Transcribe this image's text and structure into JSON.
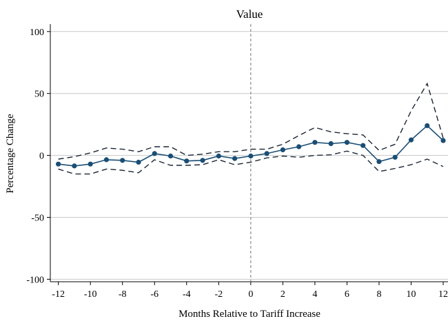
{
  "chart_data": {
    "type": "line",
    "title": "Value",
    "xlabel": "Months Relative to Tariff Increase",
    "ylabel": "Percentage Change",
    "xlim": [
      -12.5,
      12.3
    ],
    "ylim": [
      -102,
      106
    ],
    "x_ticks": [
      -12,
      -10,
      -8,
      -6,
      -4,
      -2,
      0,
      2,
      4,
      6,
      8,
      10,
      12
    ],
    "y_ticks": [
      100,
      50,
      0,
      -50,
      -100
    ],
    "grid": true,
    "reference_line_x": 0,
    "x": [
      -12,
      -11,
      -10,
      -9,
      -8,
      -7,
      -6,
      -5,
      -4,
      -3,
      -2,
      -1,
      0,
      1,
      2,
      3,
      4,
      5,
      6,
      7,
      8,
      9,
      10,
      11,
      12
    ],
    "series": [
      {
        "values": [
          -7,
          -8.5,
          -7,
          -3.5,
          -4,
          -5.5,
          1.5,
          -0.5,
          -4.5,
          -4,
          -0.5,
          -2.5,
          -0.5,
          1.5,
          4.5,
          7,
          10.5,
          9.5,
          10.5,
          8,
          -5,
          -1.5,
          12.5,
          24,
          12
        ]
      },
      {
        "values": [
          -3,
          -1,
          2,
          6,
          5,
          3,
          7,
          7,
          0,
          1,
          3,
          3,
          5,
          5,
          9,
          16,
          22.5,
          19,
          17.5,
          16.5,
          4,
          9,
          36,
          58,
          14
        ]
      },
      {
        "values": [
          -11,
          -15,
          -15,
          -11,
          -12,
          -14,
          -3.5,
          -8,
          -8,
          -7.5,
          -3.5,
          -7.5,
          -5.5,
          -2,
          -0.5,
          -1.5,
          0,
          0.5,
          3.5,
          0,
          -13,
          -10.5,
          -7.5,
          -3,
          -9
        ]
      }
    ],
    "colors": {
      "line": "#1a4e75",
      "band": "#1a2433",
      "grid": "#c8c8c8",
      "reference": "#8a8a8a"
    }
  }
}
